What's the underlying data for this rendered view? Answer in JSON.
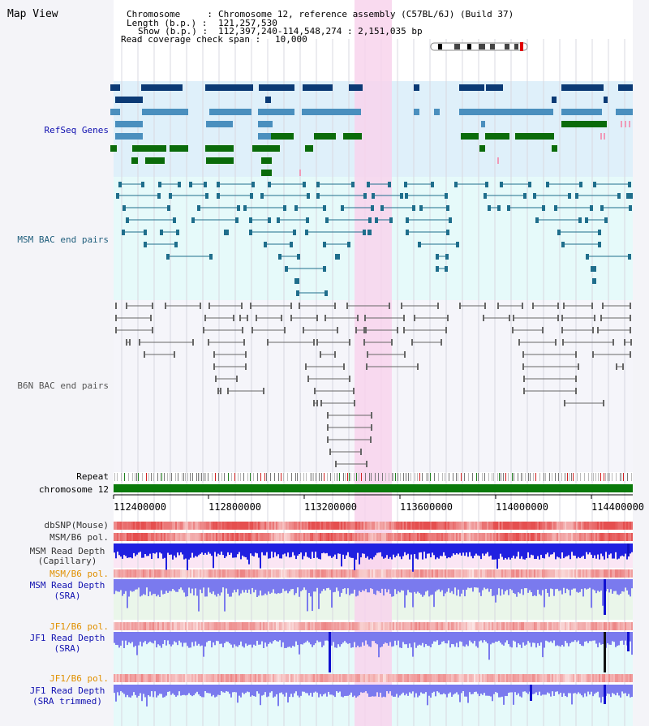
{
  "title": "Map View",
  "header": {
    "chromosome_label": "Chromosome     :",
    "chromosome_value": "Chromosome 12, reference assembly (C57BL/6J) (Build 37)",
    "length_label": "Length (b.p.) :",
    "length_value": "121,257,530",
    "show_label": "Show (b.p.) :",
    "show_value": "112,397,240-114,548,274 : 2,151,035 bp",
    "span_label": "Read coverage check span :",
    "span_value": "10,000"
  },
  "tracks": {
    "refseq": "RefSeq Genes",
    "msm_bac": "MSM BAC end pairs",
    "b6n_bac": "B6N BAC end pairs",
    "repeat": "Repeat",
    "chromosome": "chromosome 12",
    "dbsnp": "dbSNP(Mouse)",
    "msm_pol_1": "MSM/B6 pol.",
    "msm_depth_cap_1": "MSM Read Depth",
    "msm_depth_cap_2": "(Capillary)",
    "msm_pol_2": "MSM/B6 pol.",
    "msm_depth_sra_1": "MSM Read Depth",
    "msm_depth_sra_2": "(SRA)",
    "jf1_pol_1": "JF1/B6 pol.",
    "jf1_depth_sra_1": "JF1 Read Depth",
    "jf1_depth_sra_2": "(SRA)",
    "jf1_pol_2": "JF1/B6 pol.",
    "jf1_depth_trim_1": "JF1 Read Depth",
    "jf1_depth_trim_2": "(SRA trimmed)"
  },
  "axis_ticks": [
    "112400000",
    "112800000",
    "113200000",
    "113600000",
    "114000000",
    "114400000"
  ],
  "colors": {
    "gene_navy": "#0b3a75",
    "gene_steel": "#4a8fbe",
    "gene_green": "#0a6b0a",
    "bac_blue": "#1f6e8c",
    "bac_gray": "#666666",
    "highlight": "#f8d4ec",
    "depth_blue": "#2020e0",
    "depth_light": "#7a7aee",
    "pol_red": "#e03030"
  }
}
